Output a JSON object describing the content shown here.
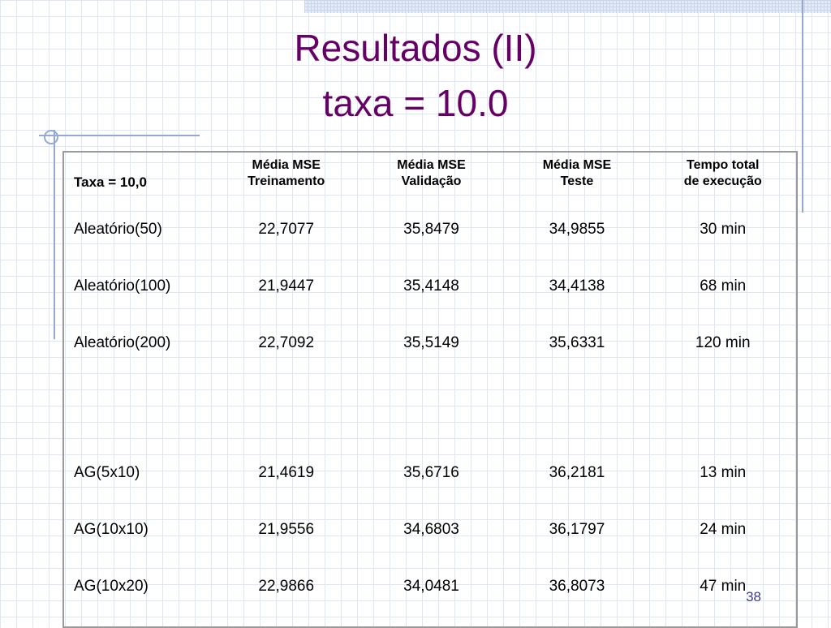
{
  "slide": {
    "title_line1": "Resultados (II)",
    "title_line2": "taxa = 10.0",
    "page_number": "38",
    "title_color": "#660066"
  },
  "table": {
    "header": {
      "first": "Taxa = 10,0",
      "col2_line1": "Média MSE",
      "col2_line2": "Treinamento",
      "col3_line1": "Média MSE",
      "col3_line2": "Validação",
      "col4_line1": "Média MSE",
      "col4_line2": "Teste",
      "col5_line1": "Tempo total",
      "col5_line2": "de execução"
    },
    "rows": [
      [
        "Aleatório(50)",
        "22,7077",
        "35,8479",
        "34,9855",
        "30 min"
      ],
      [
        "Aleatório(100)",
        "21,9447",
        "35,4148",
        "34,4138",
        "68 min"
      ],
      [
        "Aleatório(200)",
        "22,7092",
        "35,5149",
        "35,6331",
        "120 min"
      ],
      [
        "AG(5x10)",
        "21,4619",
        "35,6716",
        "36,2181",
        "13 min"
      ],
      [
        "AG(10x10)",
        "21,9556",
        "34,6803",
        "36,1797",
        "24 min"
      ],
      [
        "AG(10x20)",
        "22,9866",
        "34,0481",
        "36,8073",
        "47 min"
      ]
    ]
  }
}
